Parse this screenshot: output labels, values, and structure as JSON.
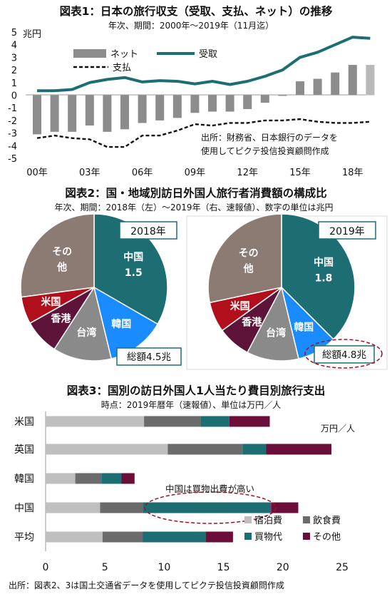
{
  "colors": {
    "teal": "#1d6e73",
    "bar_gray": "#8c8c8c",
    "other_brown": "#8b7b72",
    "us_red": "#b10f1c",
    "hk_maroon": "#5e1438",
    "taiwan_gray": "#8a8a8a",
    "korea_blue": "#1a8cff",
    "lodging": "#bfbfbf",
    "food": "#6b6b6b",
    "shopping": "#1d6e73",
    "other": "#6b0f3a"
  },
  "source_footer": "出所：図表2、3は国土交通省データを使用してピクテ投信投資顧問作成",
  "chart_data": [
    {
      "type": "line",
      "title": "図表1：日本の旅行収支（受取、支払、ネット）の推移",
      "subtitle": "年次、期間：2000年～2019年（11月迄）",
      "yunit": "兆円",
      "ylim": [
        -5,
        5
      ],
      "yticks": [
        "5",
        "4",
        "3",
        "2",
        "1",
        "0",
        "-1",
        "-2",
        "-3",
        "-4",
        "-5"
      ],
      "x": [
        2000,
        2001,
        2002,
        2003,
        2004,
        2005,
        2006,
        2007,
        2008,
        2009,
        2010,
        2011,
        2012,
        2013,
        2014,
        2015,
        2016,
        2017,
        2018,
        2019
      ],
      "xtick_labels": [
        "00年",
        "03年",
        "06年",
        "09年",
        "12年",
        "15年",
        "18年"
      ],
      "xtick_years": [
        2000,
        2003,
        2006,
        2009,
        2012,
        2015,
        2018
      ],
      "legend": [
        "ネット",
        "受取",
        "支払"
      ],
      "series": [
        {
          "name": "ネット",
          "kind": "bar",
          "values": [
            -3.1,
            -2.9,
            -2.9,
            -2.4,
            -2.9,
            -2.7,
            -2.2,
            -2.0,
            -1.8,
            -1.4,
            -1.3,
            -1.3,
            -1.1,
            -0.6,
            -0.05,
            1.1,
            1.3,
            1.8,
            2.4,
            2.4
          ]
        },
        {
          "name": "受取",
          "kind": "line",
          "values": [
            0.35,
            0.35,
            0.45,
            1.0,
            1.25,
            1.4,
            1.05,
            1.15,
            1.1,
            0.9,
            1.1,
            0.85,
            1.1,
            1.5,
            2.0,
            3.0,
            3.4,
            4.0,
            4.6,
            4.5
          ]
        },
        {
          "name": "支払",
          "kind": "line",
          "values": [
            -3.4,
            -3.2,
            -3.4,
            -3.5,
            -4.1,
            -4.1,
            -3.2,
            -3.2,
            -2.8,
            -2.3,
            -2.4,
            -2.2,
            -2.2,
            -2.0,
            -2.0,
            -1.9,
            -2.1,
            -2.2,
            -2.2,
            -2.1
          ]
        }
      ],
      "note": [
        "出所：財務省、日本銀行のデータを",
        "使用してピクテ投信投資顧問作成"
      ]
    },
    {
      "type": "pie",
      "title": "図表2：国・地域別訪日外国人旅行者消費額の構成比",
      "subtitle": "年次、期間：2018年（左）～2019年（右、速報値）、数字の単位は兆円",
      "pies": [
        {
          "label": "2018年",
          "total_label": "総額4.5兆",
          "slices": [
            {
              "name": "中国",
              "value": 1.5,
              "value_label": "1.5"
            },
            {
              "name": "韓国",
              "value": 0.58
            },
            {
              "name": "台湾",
              "value": 0.58
            },
            {
              "name": "香港",
              "value": 0.35
            },
            {
              "name": "米国",
              "value": 0.27
            },
            {
              "name": "その他",
              "value": 1.22,
              "label_lines": [
                "その",
                "他"
              ]
            }
          ]
        },
        {
          "label": "2019年",
          "total_label": "総額4.8兆",
          "slices": [
            {
              "name": "中国",
              "value": 1.8,
              "value_label": "1.8"
            },
            {
              "name": "韓国",
              "value": 0.42
            },
            {
              "name": "台湾",
              "value": 0.55
            },
            {
              "name": "香港",
              "value": 0.35
            },
            {
              "name": "米国",
              "value": 0.32
            },
            {
              "name": "その他",
              "value": 1.36,
              "label_lines": [
                "その",
                "他"
              ]
            }
          ]
        }
      ]
    },
    {
      "type": "bar",
      "orientation": "horizontal",
      "stacked": true,
      "title": "図表3：国別の訪日外国人1人当たり費目別旅行支出",
      "subtitle": "時点：2019年暦年（速報値）、単位は万円／人",
      "unit_label": "万円／人",
      "categories": [
        "米国",
        "英国",
        "韓国",
        "中国",
        "平均"
      ],
      "xlim": [
        0,
        25
      ],
      "xticks": [
        "0",
        "5",
        "10",
        "15",
        "20",
        "25"
      ],
      "series": [
        {
          "name": "宿泊費",
          "values": [
            8.3,
            10.3,
            2.5,
            4.6,
            4.8
          ]
        },
        {
          "name": "飲食費",
          "values": [
            4.8,
            6.3,
            2.2,
            3.6,
            3.4
          ]
        },
        {
          "name": "買物代",
          "values": [
            2.4,
            2.0,
            1.7,
            10.8,
            5.3
          ]
        },
        {
          "name": "その他",
          "values": [
            3.4,
            5.5,
            1.1,
            2.3,
            2.3
          ]
        }
      ],
      "annotation": "中国は買物出費が高い"
    }
  ]
}
